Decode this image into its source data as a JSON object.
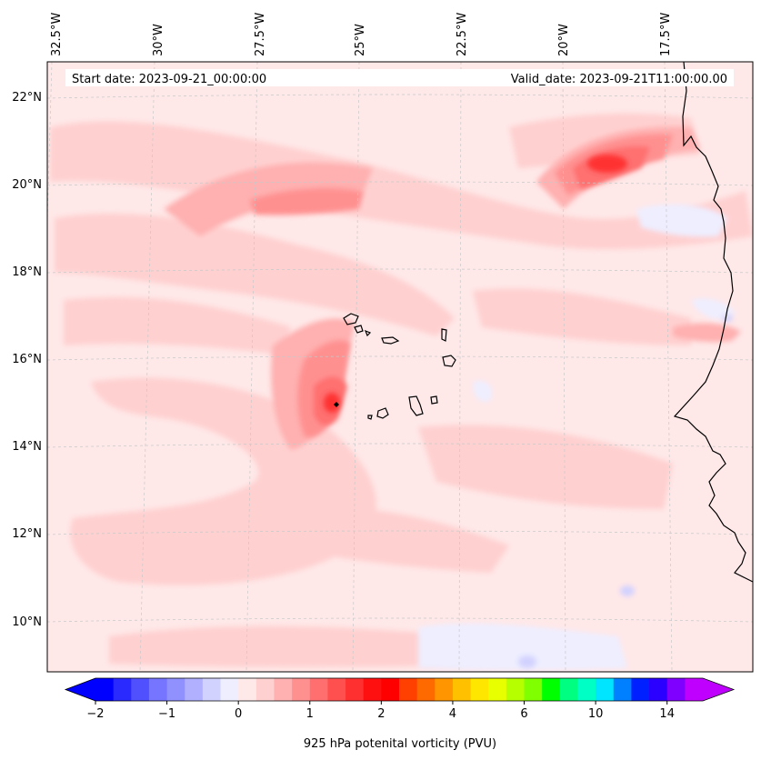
{
  "map": {
    "start_label": "Start date: 2023-09-21_00:00:00",
    "valid_label": "Valid_date: 2023-09-21T11:00:00.00",
    "lon_labels": [
      "32.5°W",
      "30°W",
      "27.5°W",
      "25°W",
      "22.5°W",
      "20°W",
      "17.5°W"
    ],
    "lat_labels": [
      "22°N",
      "20°N",
      "18°N",
      "16°N",
      "14°N",
      "12°N",
      "10°N"
    ],
    "lon_range": [
      -32.5,
      -15.0
    ],
    "lat_range": [
      8.9,
      22.8
    ],
    "features": {
      "max_center": {
        "lon": -25.4,
        "lat": 14.95,
        "value_pvu": 2.5
      },
      "coastal_max": {
        "lon": -18.9,
        "lat": 20.4,
        "value_pvu": 2.0
      },
      "islands": "Cape Verde",
      "coastline": "West Africa"
    }
  },
  "colorbar": {
    "label": "925 hPa potenital vorticity (PVU)",
    "ticks": [
      "−2",
      "−1",
      "0",
      "1",
      "2",
      "4",
      "6",
      "10",
      "14"
    ],
    "levels": [
      -2,
      -1.75,
      -1.5,
      -1.25,
      -1,
      -0.75,
      -0.5,
      -0.25,
      0,
      0.25,
      0.5,
      0.75,
      1,
      1.25,
      1.5,
      1.75,
      2,
      2.5,
      3,
      3.5,
      4,
      4.5,
      5,
      5.5,
      6,
      7,
      8,
      9,
      10,
      11,
      12,
      13,
      14,
      15
    ],
    "colors": [
      "#0000ff",
      "#2a2aff",
      "#5050ff",
      "#7575ff",
      "#9090ff",
      "#b0b0ff",
      "#d2d2ff",
      "#eeeeff",
      "#ffe8e8",
      "#ffd0d0",
      "#ffb0b0",
      "#ff9090",
      "#ff6f6f",
      "#ff5050",
      "#ff3030",
      "#ff1010",
      "#ff0000",
      "#ff4000",
      "#ff6a00",
      "#ff9500",
      "#ffc000",
      "#ffe600",
      "#e8ff00",
      "#b6ff00",
      "#7fff00",
      "#00ff00",
      "#00ff80",
      "#00ffc4",
      "#00e5ff",
      "#0080ff",
      "#0020ff",
      "#2b00ff",
      "#8000ff",
      "#c000ff"
    ],
    "under_color": "#0000ff",
    "over_color": "#c000ff"
  }
}
